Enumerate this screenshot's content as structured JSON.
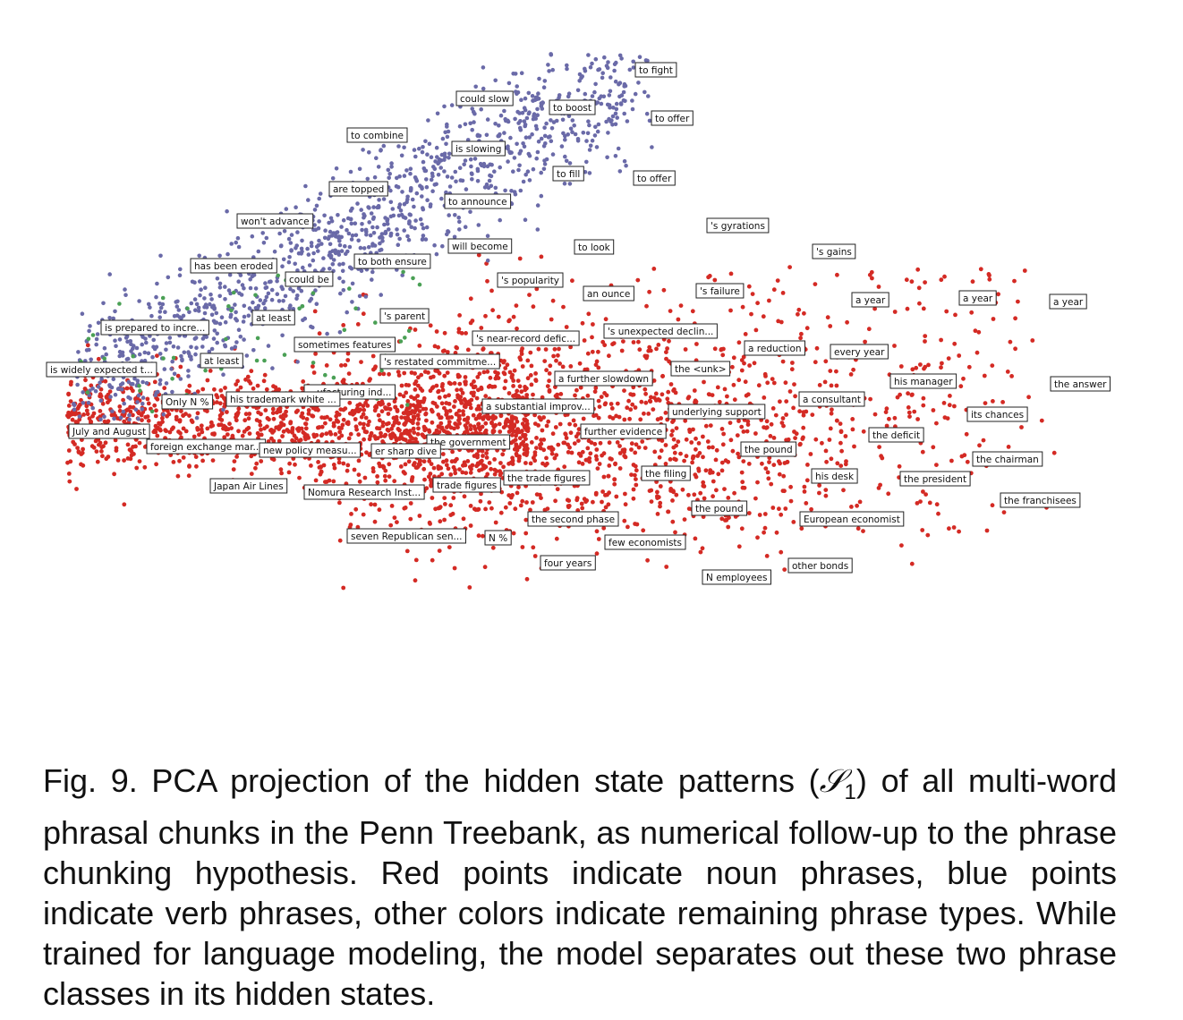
{
  "figure": {
    "chart_data": {
      "type": "scatter",
      "title": "",
      "xlabel": "",
      "ylabel": "",
      "grid": false,
      "series": [
        {
          "color": "#d42a24",
          "count": 3200
        },
        {
          "color": "#6a6aa8",
          "count": 1300
        },
        {
          "color": "#4aa055",
          "count": 60
        }
      ],
      "annotations": [
        "to fight",
        "could slow",
        "to boost",
        "to offer",
        "to combine",
        "is slowing",
        "to fill",
        "to offer",
        "are topped",
        "to announce",
        "won't advance",
        "'s gyrations",
        "will become",
        "to look",
        "'s gains",
        "has been eroded",
        "to both ensure",
        "could be",
        "'s popularity",
        "'s failure",
        "an ounce",
        "a year",
        "a year",
        "a year",
        "at least",
        "'s parent",
        "is prepared to incre...",
        "'s unexpected declin...",
        "'s near-record defic...",
        "sometimes features",
        "a reduction",
        "every year",
        "at least",
        "'s restated commitme...",
        "is widely expected t...",
        "the <unk>",
        "a further slowdown",
        "his manager",
        "the answer",
        "...ufacturing ind...",
        "his trademark white ...",
        "Only N %",
        "a consultant",
        "a substantial improv...",
        "underlying support",
        "its chances",
        "July and August",
        "further evidence",
        "the deficit",
        "the government",
        "foreign exchange mar...",
        "new policy measu...",
        "er sharp dive",
        "the pound",
        "the chairman",
        "the filing",
        "the trade figures",
        "his desk",
        "the president",
        "Japan Air Lines",
        "trade figures",
        "Nomura Research Inst...",
        "the franchisees",
        "the pound",
        "the second phase",
        "European economist",
        "seven Republican sen...",
        "N %",
        "few economists",
        "four years",
        "other bonds",
        "N employees"
      ]
    }
  },
  "caption": {
    "prefix": "Fig. 9. PCA projection of the hidden state patterns (",
    "symbol": "𝒮",
    "subscript": "1",
    "suffix": ") of all multi-word phrasal chunks in the Penn Treebank, as numerical follow-up to the phrase chunking hypothesis. Red points indicate noun phrases, blue points indicate verb phrases, other colors indicate remaining phrase types. While trained for language modeling, the model separates out these two phrase classes in its hidden states."
  }
}
